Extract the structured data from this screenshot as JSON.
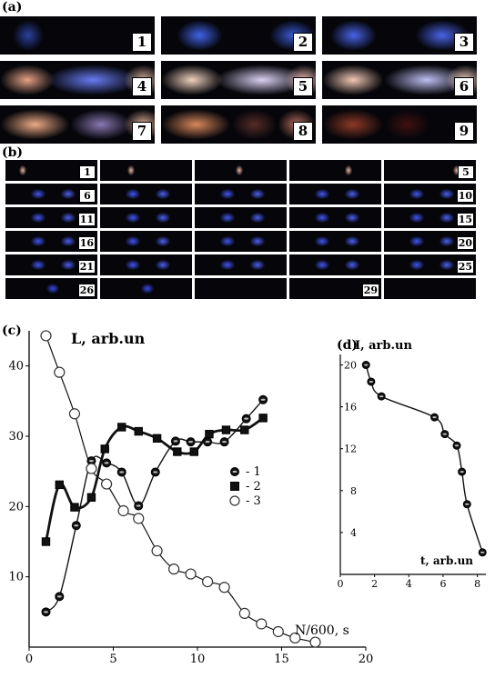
{
  "panels": {
    "a": {
      "label": "(a)",
      "frames": [
        "1",
        "2",
        "3",
        "4",
        "5",
        "6",
        "7",
        "8",
        "9"
      ]
    },
    "b": {
      "label": "(b)",
      "frame_labels": [
        "1",
        "5",
        "6",
        "10",
        "11",
        "15",
        "16",
        "20",
        "21",
        "25",
        "26",
        "29"
      ]
    },
    "c": {
      "label": "(c)"
    },
    "d": {
      "label": "(d)"
    }
  },
  "chart_data": [
    {
      "type": "line",
      "panel": "(c)",
      "title": "",
      "ylabel": "L, arb.un",
      "xlabel": "N/600, s",
      "xlim": [
        0,
        20
      ],
      "ylim": [
        0,
        45
      ],
      "xticks": [
        0,
        5,
        10,
        15,
        20
      ],
      "yticks": [
        10,
        20,
        30,
        40
      ],
      "legend": "right-middle",
      "grid": false,
      "series": [
        {
          "name": "- 1",
          "marker": "filled-circle",
          "x": [
            1,
            1.8,
            2.8,
            3.7,
            4.6,
            5.5,
            6.5,
            7.5,
            8.7,
            9.6,
            10.6,
            11.6,
            12.9,
            13.9
          ],
          "y": [
            5,
            7.2,
            17.3,
            26.5,
            26.2,
            24.9,
            20.1,
            24.9,
            29.3,
            29.2,
            29.2,
            29.2,
            32.5,
            35.2
          ]
        },
        {
          "name": "- 2",
          "marker": "filled-square",
          "x": [
            1,
            1.8,
            2.7,
            3.7,
            4.5,
            5.5,
            6.5,
            7.6,
            8.8,
            9.8,
            10.7,
            11.7,
            12.8,
            13.9
          ],
          "y": [
            15,
            23.1,
            19.9,
            21.3,
            28.2,
            31.3,
            30.7,
            29.7,
            27.8,
            27.8,
            30.3,
            30.9,
            30.9,
            32.6
          ]
        },
        {
          "name": "- 3",
          "marker": "open-circle",
          "x": [
            1,
            1.8,
            2.7,
            3.7,
            4.6,
            5.6,
            6.5,
            7.6,
            8.6,
            9.6,
            10.6,
            11.6,
            12.8,
            13.8,
            14.8,
            15.8,
            17
          ],
          "y": [
            44.3,
            39.1,
            33.2,
            25.4,
            23.2,
            19.4,
            18.3,
            13.7,
            11.1,
            10.4,
            9.3,
            8.5,
            4.8,
            3.3,
            2.2,
            1.3,
            0.7
          ]
        }
      ]
    },
    {
      "type": "line",
      "panel": "(d)",
      "title": "",
      "ylabel": "I, arb.un",
      "xlabel": "t, arb.un",
      "xlim": [
        0,
        8.5
      ],
      "ylim": [
        0,
        21
      ],
      "xticks": [
        0,
        2,
        4,
        6,
        8
      ],
      "yticks": [
        4,
        8,
        12,
        16,
        20
      ],
      "grid": false,
      "series": [
        {
          "marker": "filled-circle",
          "x": [
            1.5,
            1.8,
            2.4,
            5.5,
            6.1,
            6.8,
            7.1,
            7.4,
            8.3
          ],
          "y": [
            20,
            18.4,
            17,
            15,
            13.4,
            12.3,
            9.8,
            6.7,
            2.1
          ]
        }
      ]
    }
  ]
}
